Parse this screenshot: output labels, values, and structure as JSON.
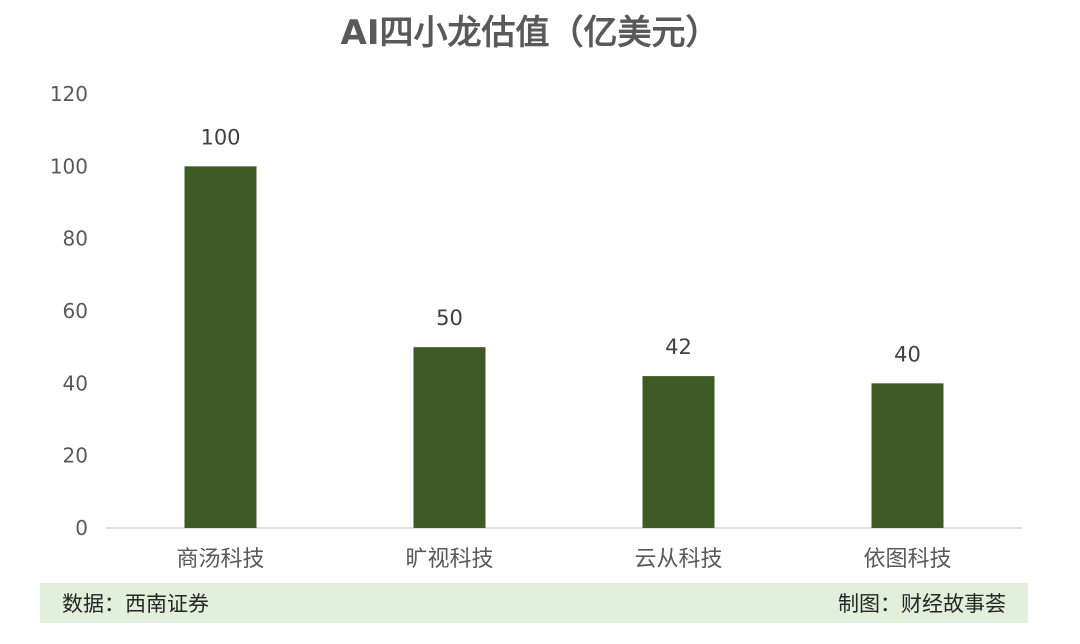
{
  "chart_data": {
    "type": "bar",
    "title": "AI四小龙估值（亿美元）",
    "categories": [
      "商汤科技",
      "旷视科技",
      "云从科技",
      "依图科技"
    ],
    "values": [
      100,
      50,
      42,
      40
    ],
    "ylim": [
      0,
      120
    ],
    "yticks": [
      0,
      20,
      40,
      60,
      80,
      100,
      120
    ],
    "bar_color": "#3d5a27",
    "grid": false,
    "legend": "none"
  },
  "footer": {
    "source": "数据：西南证券",
    "credit": "制图：财经故事荟"
  },
  "colors": {
    "footer_bg": "#e2efda",
    "axis": "#d9d9d9"
  }
}
